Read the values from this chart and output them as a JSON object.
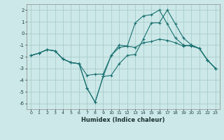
{
  "xlabel": "Humidex (Indice chaleur)",
  "background_color": "#cce8e8",
  "grid_color": "#aacccc",
  "line_color": "#1a7070",
  "xlim": [
    -0.5,
    23.5
  ],
  "ylim": [
    -6.5,
    2.5
  ],
  "yticks": [
    -6,
    -5,
    -4,
    -3,
    -2,
    -1,
    0,
    1,
    2
  ],
  "xticks": [
    0,
    1,
    2,
    3,
    4,
    5,
    6,
    7,
    8,
    9,
    10,
    11,
    12,
    13,
    14,
    15,
    16,
    17,
    18,
    19,
    20,
    21,
    22,
    23
  ],
  "series": [
    [
      -1.9,
      -1.7,
      -1.4,
      -1.5,
      -2.2,
      -2.5,
      -2.6,
      -3.6,
      -3.5,
      -3.5,
      -1.9,
      -1.2,
      -1.1,
      -1.2,
      -0.8,
      -0.7,
      -0.5,
      -0.6,
      -0.8,
      -1.1,
      -1.0,
      -1.3,
      -2.3,
      -3.0
    ],
    [
      -1.9,
      -1.7,
      -1.4,
      -1.5,
      -2.2,
      -2.5,
      -2.6,
      -4.7,
      -5.9,
      -3.7,
      -3.6,
      -2.6,
      -1.9,
      -1.8,
      -0.5,
      0.9,
      0.9,
      2.0,
      0.8,
      -0.4,
      -1.0,
      -1.3,
      -2.3,
      -3.0
    ],
    [
      -1.9,
      -1.7,
      -1.4,
      -1.5,
      -2.2,
      -2.5,
      -2.6,
      -4.7,
      -5.9,
      -3.7,
      -1.9,
      -1.0,
      -1.1,
      0.9,
      1.5,
      1.6,
      2.0,
      0.8,
      -0.4,
      -1.0,
      -1.1,
      -1.3,
      -2.3,
      -3.0
    ]
  ]
}
